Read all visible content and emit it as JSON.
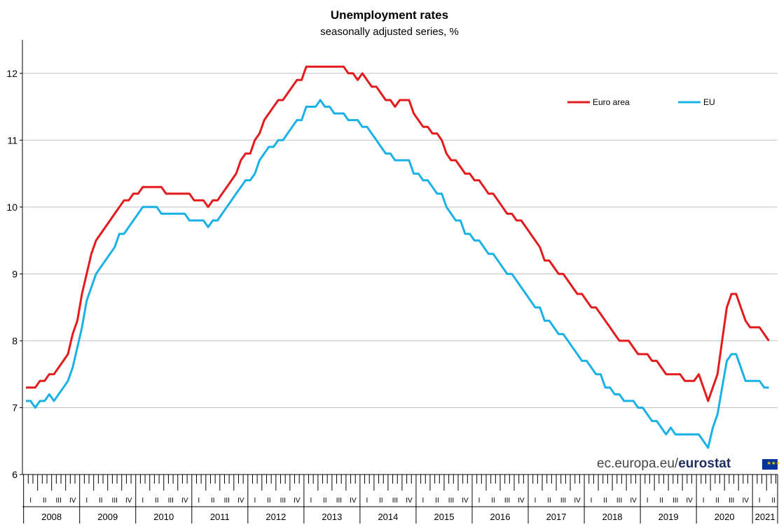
{
  "chart_data": {
    "type": "line",
    "title": "Unemployment rates",
    "subtitle": "seasonally adjusted series, %",
    "xlabel": "",
    "ylabel": "",
    "ylim": [
      6,
      12.5
    ],
    "yticks": [
      6,
      7,
      8,
      9,
      10,
      11,
      12
    ],
    "grid": "horizontal",
    "legend_position": "top-right",
    "x_start": "2008-01",
    "x_frequency": "monthly",
    "years": [
      "2008",
      "2009",
      "2010",
      "2011",
      "2012",
      "2013",
      "2014",
      "2015",
      "2016",
      "2017",
      "2018",
      "2019",
      "2020",
      "2021"
    ],
    "quarter_labels": [
      "I",
      "II",
      "III",
      "IV"
    ],
    "last_year_quarters": [
      "I",
      "II"
    ],
    "series": [
      {
        "name": "Euro area",
        "color": "#e41a1c",
        "values": [
          7.3,
          7.3,
          7.3,
          7.4,
          7.4,
          7.5,
          7.5,
          7.6,
          7.7,
          7.8,
          8.1,
          8.3,
          8.7,
          9.0,
          9.3,
          9.5,
          9.6,
          9.7,
          9.8,
          9.9,
          10.0,
          10.1,
          10.1,
          10.2,
          10.2,
          10.3,
          10.3,
          10.3,
          10.3,
          10.3,
          10.2,
          10.2,
          10.2,
          10.2,
          10.2,
          10.2,
          10.1,
          10.1,
          10.1,
          10.0,
          10.1,
          10.1,
          10.2,
          10.3,
          10.4,
          10.5,
          10.7,
          10.8,
          10.8,
          11.0,
          11.1,
          11.3,
          11.4,
          11.5,
          11.6,
          11.6,
          11.7,
          11.8,
          11.9,
          11.9,
          12.1,
          12.1,
          12.1,
          12.1,
          12.1,
          12.1,
          12.1,
          12.1,
          12.1,
          12.0,
          12.0,
          11.9,
          12.0,
          11.9,
          11.8,
          11.8,
          11.7,
          11.6,
          11.6,
          11.5,
          11.6,
          11.6,
          11.6,
          11.4,
          11.3,
          11.2,
          11.2,
          11.1,
          11.1,
          11.0,
          10.8,
          10.7,
          10.7,
          10.6,
          10.5,
          10.5,
          10.4,
          10.4,
          10.3,
          10.2,
          10.2,
          10.1,
          10.0,
          9.9,
          9.9,
          9.8,
          9.8,
          9.7,
          9.6,
          9.5,
          9.4,
          9.2,
          9.2,
          9.1,
          9.0,
          9.0,
          8.9,
          8.8,
          8.7,
          8.7,
          8.6,
          8.5,
          8.5,
          8.4,
          8.3,
          8.2,
          8.1,
          8.0,
          8.0,
          8.0,
          7.9,
          7.8,
          7.8,
          7.8,
          7.7,
          7.7,
          7.6,
          7.5,
          7.5,
          7.5,
          7.5,
          7.4,
          7.4,
          7.4,
          7.5,
          7.3,
          7.1,
          7.3,
          7.5,
          8.0,
          8.5,
          8.7,
          8.7,
          8.5,
          8.3,
          8.2,
          8.2,
          8.2,
          8.1,
          8.0
        ]
      },
      {
        "name": "EU",
        "color": "#1ab1e6",
        "values": [
          7.1,
          7.1,
          7.0,
          7.1,
          7.1,
          7.2,
          7.1,
          7.2,
          7.3,
          7.4,
          7.6,
          7.9,
          8.2,
          8.6,
          8.8,
          9.0,
          9.1,
          9.2,
          9.3,
          9.4,
          9.6,
          9.6,
          9.7,
          9.8,
          9.9,
          10.0,
          10.0,
          10.0,
          10.0,
          9.9,
          9.9,
          9.9,
          9.9,
          9.9,
          9.9,
          9.8,
          9.8,
          9.8,
          9.8,
          9.7,
          9.8,
          9.8,
          9.9,
          10.0,
          10.1,
          10.2,
          10.3,
          10.4,
          10.4,
          10.5,
          10.7,
          10.8,
          10.9,
          10.9,
          11.0,
          11.0,
          11.1,
          11.2,
          11.3,
          11.3,
          11.5,
          11.5,
          11.5,
          11.6,
          11.5,
          11.5,
          11.4,
          11.4,
          11.4,
          11.3,
          11.3,
          11.3,
          11.2,
          11.2,
          11.1,
          11.0,
          10.9,
          10.8,
          10.8,
          10.7,
          10.7,
          10.7,
          10.7,
          10.5,
          10.5,
          10.4,
          10.4,
          10.3,
          10.2,
          10.2,
          10.0,
          9.9,
          9.8,
          9.8,
          9.6,
          9.6,
          9.5,
          9.5,
          9.4,
          9.3,
          9.3,
          9.2,
          9.1,
          9.0,
          9.0,
          8.9,
          8.8,
          8.7,
          8.6,
          8.5,
          8.5,
          8.3,
          8.3,
          8.2,
          8.1,
          8.1,
          8.0,
          7.9,
          7.8,
          7.7,
          7.7,
          7.6,
          7.5,
          7.5,
          7.3,
          7.3,
          7.2,
          7.2,
          7.1,
          7.1,
          7.1,
          7.0,
          7.0,
          6.9,
          6.8,
          6.8,
          6.7,
          6.6,
          6.7,
          6.6,
          6.6,
          6.6,
          6.6,
          6.6,
          6.6,
          6.5,
          6.4,
          6.7,
          6.9,
          7.3,
          7.7,
          7.8,
          7.8,
          7.6,
          7.4,
          7.4,
          7.4,
          7.4,
          7.3,
          7.3
        ]
      }
    ]
  },
  "footer": {
    "source_prefix": "ec.europa.eu/",
    "source_brand": "eurostat"
  }
}
